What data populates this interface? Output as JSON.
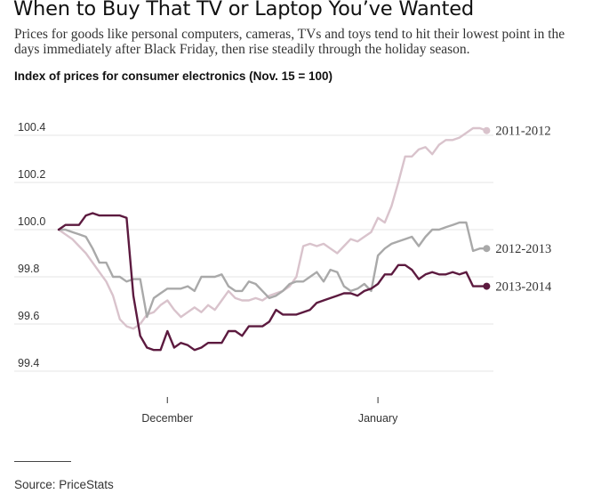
{
  "header": {
    "headline": "When to Buy That TV or Laptop You’ve Wanted",
    "dek": "Prices for goods like personal computers, cameras, TVs and toys tend to hit their lowest point in the days immediately after Black Friday, then rise steadily through the holiday season."
  },
  "footer": {
    "source": "Source: PriceStats"
  },
  "colors": {
    "s2011": "#d9c3cc",
    "s2012": "#a9a9a9",
    "s2013": "#5c1a3f",
    "grid": "#e6e6e6"
  },
  "chart_data": {
    "type": "line",
    "title": "Index of prices for consumer electronics (Nov. 15 = 100)",
    "xlabel": "",
    "ylabel": "",
    "ylim": [
      99.3,
      100.5
    ],
    "yticks": [
      100.4,
      100.2,
      100.0,
      99.8,
      99.6,
      99.4
    ],
    "y_tick_labels": [
      "100.4",
      "100.2",
      "100.0",
      "99.8",
      "99.6",
      "99.4"
    ],
    "xlim": [
      0,
      64
    ],
    "x_ticks": [
      {
        "label": "December",
        "x": 16
      },
      {
        "label": "January",
        "x": 47
      }
    ],
    "grid": true,
    "legend": "series labels at right end of lines",
    "series": [
      {
        "name": "2011-2012",
        "color_key": "s2011",
        "values": [
          100.0,
          99.98,
          99.96,
          99.93,
          99.9,
          99.86,
          99.82,
          99.78,
          99.72,
          99.62,
          99.59,
          99.58,
          99.6,
          99.64,
          99.65,
          99.68,
          99.7,
          99.66,
          99.63,
          99.65,
          99.67,
          99.65,
          99.68,
          99.66,
          99.7,
          99.74,
          99.71,
          99.7,
          99.7,
          99.71,
          99.7,
          99.72,
          99.73,
          99.74,
          99.76,
          99.8,
          99.93,
          99.94,
          99.93,
          99.94,
          99.92,
          99.9,
          99.93,
          99.96,
          99.95,
          99.97,
          99.99,
          100.05,
          100.03,
          100.1,
          100.2,
          100.31,
          100.31,
          100.34,
          100.35,
          100.32,
          100.36,
          100.38,
          100.38,
          100.39,
          100.41,
          100.43,
          100.43,
          100.42
        ]
      },
      {
        "name": "2012-2013",
        "color_key": "s2012",
        "values": [
          100.0,
          100.0,
          99.99,
          99.98,
          99.97,
          99.92,
          99.86,
          99.86,
          99.8,
          99.8,
          99.78,
          99.79,
          99.79,
          99.63,
          99.71,
          99.73,
          99.75,
          99.75,
          99.75,
          99.76,
          99.74,
          99.8,
          99.8,
          99.8,
          99.81,
          99.76,
          99.74,
          99.74,
          99.78,
          99.77,
          99.74,
          99.71,
          99.72,
          99.74,
          99.77,
          99.78,
          99.78,
          99.8,
          99.82,
          99.78,
          99.83,
          99.82,
          99.76,
          99.74,
          99.75,
          99.77,
          99.74,
          99.89,
          99.92,
          99.94,
          99.95,
          99.96,
          99.97,
          99.93,
          99.97,
          100.0,
          100.0,
          100.01,
          100.02,
          100.03,
          100.03,
          99.91,
          99.92,
          99.92
        ]
      },
      {
        "name": "2013-2014",
        "color_key": "s2013",
        "values": [
          100.0,
          100.02,
          100.02,
          100.02,
          100.06,
          100.07,
          100.06,
          100.06,
          100.06,
          100.06,
          100.05,
          99.72,
          99.55,
          99.5,
          99.49,
          99.49,
          99.57,
          99.5,
          99.52,
          99.51,
          99.49,
          99.5,
          99.52,
          99.52,
          99.52,
          99.57,
          99.57,
          99.55,
          99.59,
          99.59,
          99.59,
          99.61,
          99.66,
          99.64,
          99.64,
          99.64,
          99.65,
          99.66,
          99.69,
          99.7,
          99.71,
          99.72,
          99.73,
          99.73,
          99.72,
          99.74,
          99.75,
          99.77,
          99.81,
          99.81,
          99.85,
          99.85,
          99.83,
          99.79,
          99.81,
          99.82,
          99.81,
          99.81,
          99.82,
          99.81,
          99.82,
          99.76,
          99.76,
          99.76
        ]
      }
    ]
  }
}
